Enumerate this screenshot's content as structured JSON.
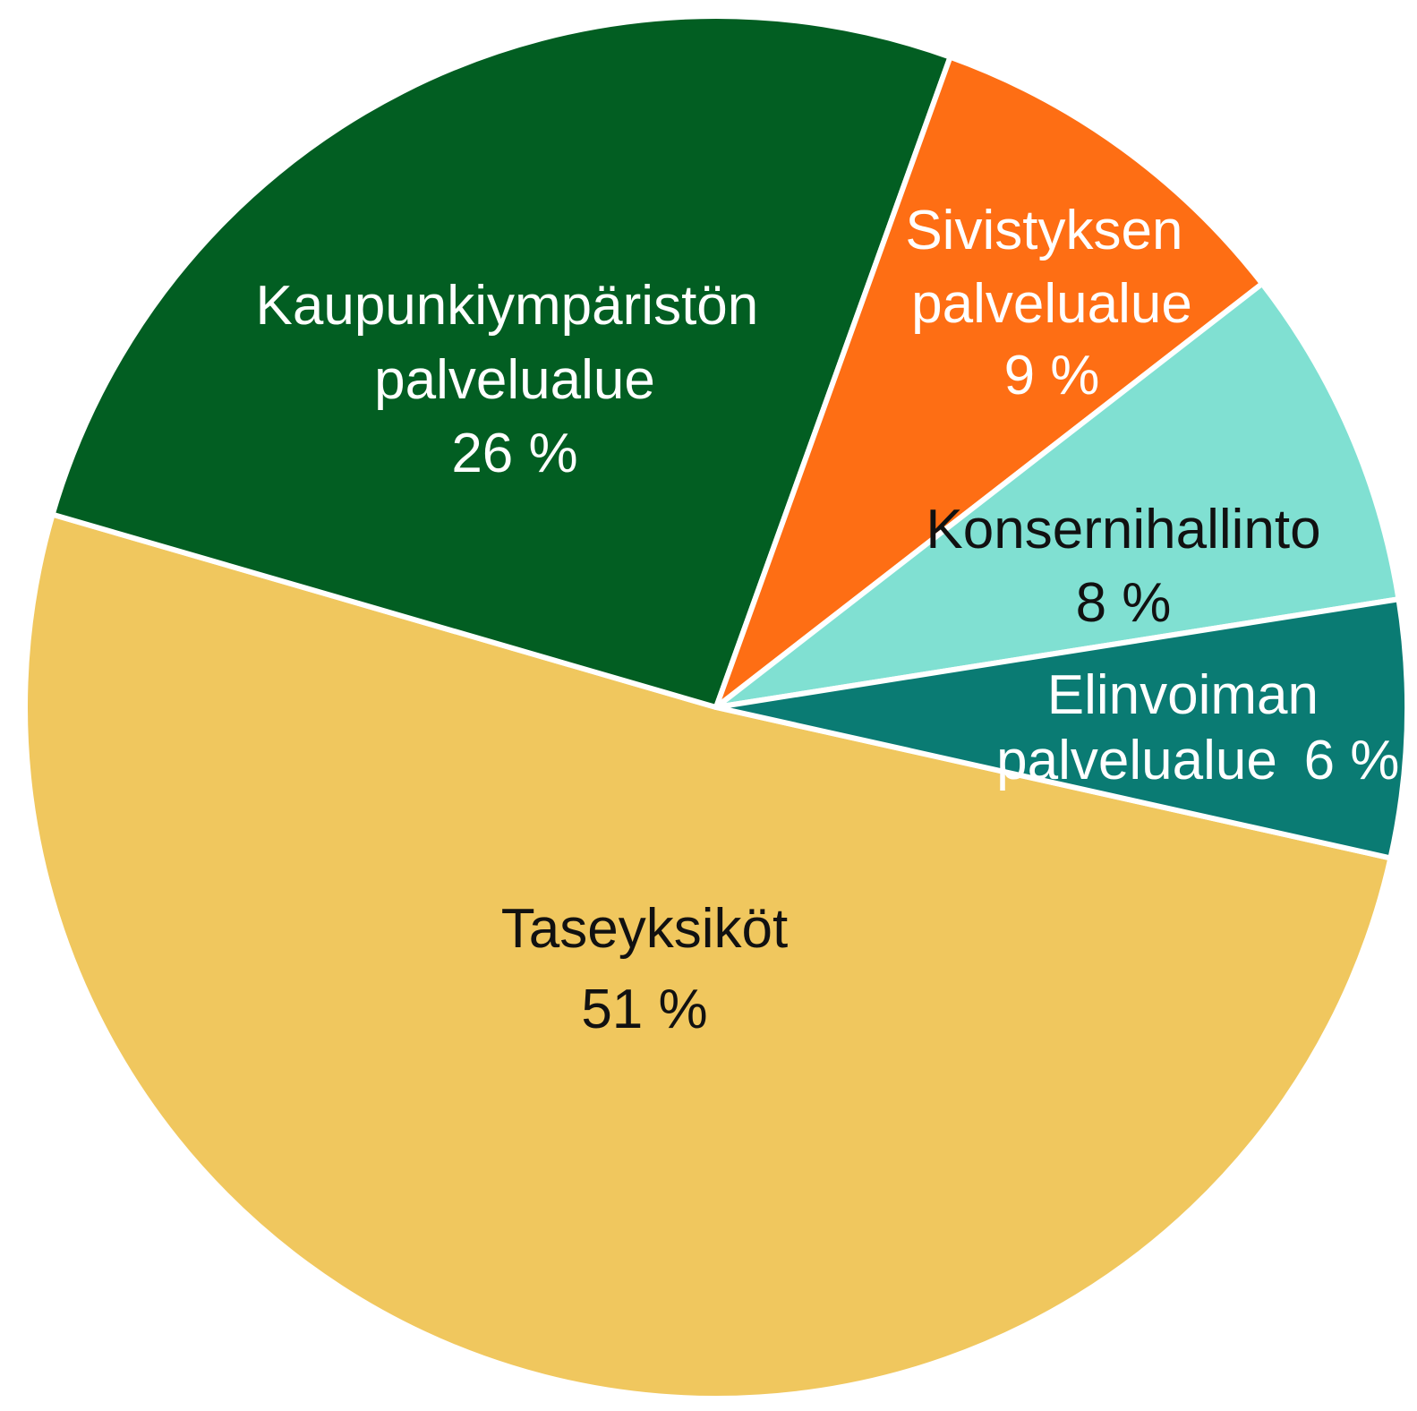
{
  "chart_data": {
    "type": "pie",
    "categories": [
      "Taseyksiköt",
      "Kaupunkiympäristön palvelualue",
      "Sivistyksen palvelualue",
      "Konsernihallinto",
      "Elinvoiman palvelualue"
    ],
    "values": [
      51,
      26,
      9,
      8,
      6
    ],
    "value_labels": [
      "51 %",
      "26 %",
      "9 %",
      "8 %",
      "6 %"
    ],
    "colors": [
      "#f0c75e",
      "#025e22",
      "#fe6e14",
      "#80e0d2",
      "#0a7b73"
    ]
  }
}
